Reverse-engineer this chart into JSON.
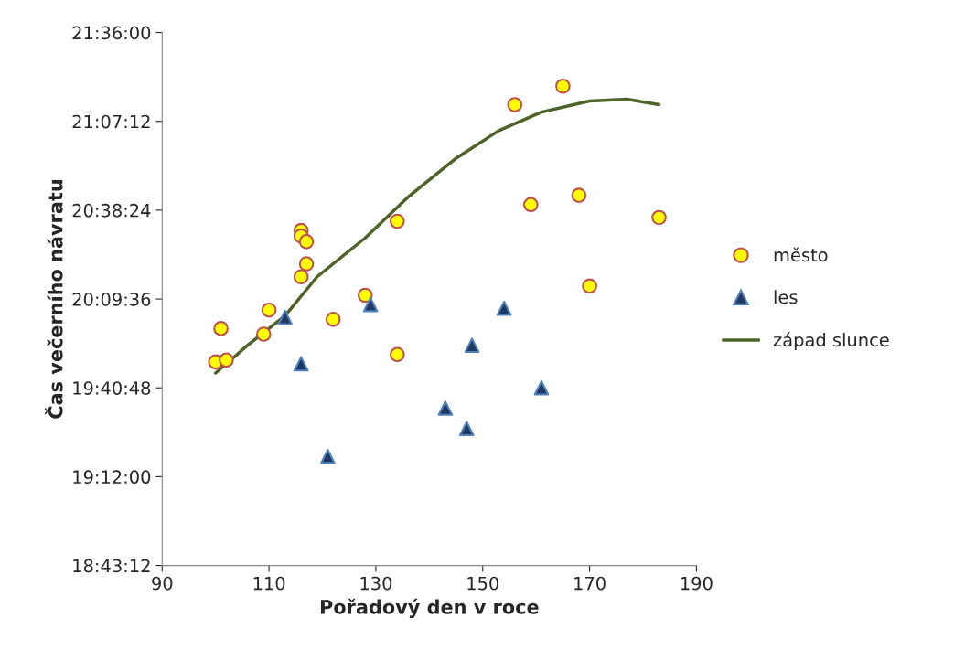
{
  "chart_data": {
    "type": "scatter",
    "xlabel": "Pořadový den v roce",
    "ylabel": "Čas večerního návratu",
    "xlim": [
      90,
      190
    ],
    "xticks": [
      90,
      110,
      130,
      150,
      170,
      190
    ],
    "ylim": [
      18.72,
      21.6
    ],
    "yticks": [
      {
        "value": 18.72,
        "label": "18:43:12"
      },
      {
        "value": 19.2,
        "label": "19:12:00"
      },
      {
        "value": 19.68,
        "label": "19:40:48"
      },
      {
        "value": 20.16,
        "label": "20:09:36"
      },
      {
        "value": 20.64,
        "label": "20:38:24"
      },
      {
        "value": 21.12,
        "label": "21:07:12"
      },
      {
        "value": 21.6,
        "label": "21:36:00"
      }
    ],
    "grid": false,
    "legend": "right",
    "series": [
      {
        "name": "město",
        "marker": "circle",
        "color": "#ffff00",
        "x": [
          100,
          101,
          102,
          109,
          110,
          116,
          116,
          117,
          117,
          116,
          122,
          128,
          134,
          134,
          156,
          165,
          159,
          168,
          170,
          183
        ],
        "values": [
          19.82,
          20.0,
          19.83,
          19.97,
          20.1,
          20.53,
          20.5,
          20.47,
          20.35,
          20.28,
          20.05,
          20.18,
          20.58,
          19.86,
          21.21,
          21.31,
          20.67,
          20.72,
          20.23,
          20.6
        ]
      },
      {
        "name": "les",
        "marker": "triangle",
        "color": "#1f3864",
        "x": [
          113,
          116,
          121,
          129,
          143,
          147,
          148,
          154,
          161
        ],
        "values": [
          20.06,
          19.81,
          19.31,
          20.13,
          19.57,
          19.46,
          19.91,
          20.11,
          19.68
        ]
      },
      {
        "name": "západ slunce",
        "type": "line",
        "marker": "none",
        "line_style": "solid",
        "color": "#4f6228",
        "x": [
          100,
          106,
          113,
          119,
          128,
          136,
          145,
          153,
          161,
          170,
          177,
          183
        ],
        "values": [
          19.76,
          19.91,
          20.07,
          20.28,
          20.49,
          20.71,
          20.92,
          21.07,
          21.17,
          21.23,
          21.24,
          21.21
        ]
      }
    ]
  }
}
